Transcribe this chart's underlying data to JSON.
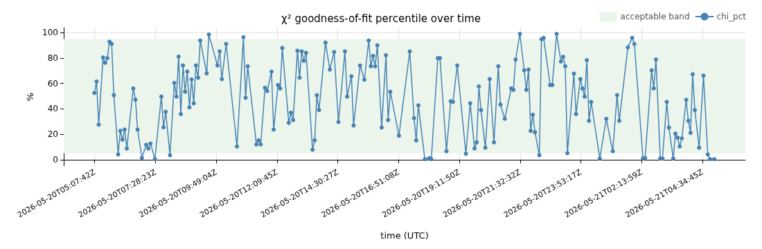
{
  "chart_data": {
    "type": "line",
    "title": "χ² goodness-of-fit percentile over time",
    "xlabel": "time (UTC)",
    "ylabel": "%",
    "xlim": [
      "2026-05-20T03:56",
      "2026-05-21T06:14"
    ],
    "xticks": [
      {
        "value": "2026-05-20T05:07:42",
        "label": "2026-05-20T05:07:42Z"
      },
      {
        "value": "2026-05-20T07:28:23",
        "label": "2026-05-20T07:28:23Z"
      },
      {
        "value": "2026-05-20T09:49:04",
        "label": "2026-05-20T09:49:04Z"
      },
      {
        "value": "2026-05-20T12:09:45",
        "label": "2026-05-20T12:09:45Z"
      },
      {
        "value": "2026-05-20T14:30:27",
        "label": "2026-05-20T14:30:27Z"
      },
      {
        "value": "2026-05-20T16:51:08",
        "label": "2026-05-20T16:51:08Z"
      },
      {
        "value": "2026-05-20T19:11:50",
        "label": "2026-05-20T19:11:50Z"
      },
      {
        "value": "2026-05-20T21:32:32",
        "label": "2026-05-20T21:32:32Z"
      },
      {
        "value": "2026-05-20T23:53:17",
        "label": "2026-05-20T23:53:17Z"
      },
      {
        "value": "2026-05-21T02:13:59",
        "label": "2026-05-21T02:13:59Z"
      },
      {
        "value": "2026-05-21T04:34:45",
        "label": "2026-05-21T04:34:45Z"
      }
    ],
    "ylim": [
      -5,
      104
    ],
    "yticks": [
      0,
      20,
      40,
      60,
      80,
      100
    ],
    "grid": true,
    "legend": "top right",
    "marker": "circle",
    "line_style": "solid",
    "bands": [
      {
        "axis": "y",
        "from": 5,
        "to": 95,
        "label": "acceptable band",
        "color": "#ebf5eb"
      }
    ],
    "series": [
      {
        "name": "chi_pct",
        "color": "#4682b4",
        "x": [
          "2026-05-20T05:07",
          "2026-05-20T05:12",
          "2026-05-20T05:17",
          "2026-05-20T05:27",
          "2026-05-20T05:32",
          "2026-05-20T05:37",
          "2026-05-20T05:42",
          "2026-05-20T05:47",
          "2026-05-20T05:52",
          "2026-05-20T06:02",
          "2026-05-20T06:07",
          "2026-05-20T06:12",
          "2026-05-20T06:17",
          "2026-05-20T06:22",
          "2026-05-20T06:37",
          "2026-05-20T06:42",
          "2026-05-20T06:47",
          "2026-05-20T06:57",
          "2026-05-20T07:07",
          "2026-05-20T07:12",
          "2026-05-20T07:17",
          "2026-05-20T07:27",
          "2026-05-20T07:42",
          "2026-05-20T07:47",
          "2026-05-20T07:52",
          "2026-05-20T08:02",
          "2026-05-20T08:12",
          "2026-05-20T08:17",
          "2026-05-20T08:22",
          "2026-05-20T08:27",
          "2026-05-20T08:32",
          "2026-05-20T08:37",
          "2026-05-20T08:42",
          "2026-05-20T08:47",
          "2026-05-20T08:52",
          "2026-05-20T08:57",
          "2026-05-20T09:02",
          "2026-05-20T09:07",
          "2026-05-20T09:12",
          "2026-05-20T09:27",
          "2026-05-20T09:32",
          "2026-05-20T09:52",
          "2026-05-20T09:57",
          "2026-05-20T10:02",
          "2026-05-20T10:12",
          "2026-05-20T10:37",
          "2026-05-20T10:52",
          "2026-05-20T10:57",
          "2026-05-20T11:02",
          "2026-05-20T11:22",
          "2026-05-20T11:27",
          "2026-05-20T11:32",
          "2026-05-20T11:42",
          "2026-05-20T11:47",
          "2026-05-20T11:57",
          "2026-05-20T12:02",
          "2026-05-20T12:12",
          "2026-05-20T12:17",
          "2026-05-20T12:22",
          "2026-05-20T12:37",
          "2026-05-20T12:42",
          "2026-05-20T12:47",
          "2026-05-20T12:57",
          "2026-05-20T13:02",
          "2026-05-20T13:07",
          "2026-05-20T13:12",
          "2026-05-20T13:17",
          "2026-05-20T13:32",
          "2026-05-20T13:37",
          "2026-05-20T13:42",
          "2026-05-20T13:47",
          "2026-05-20T14:02",
          "2026-05-20T14:12",
          "2026-05-20T14:22",
          "2026-05-20T14:32",
          "2026-05-20T14:47",
          "2026-05-20T14:52",
          "2026-05-20T15:02",
          "2026-05-20T15:07",
          "2026-05-20T15:22",
          "2026-05-20T15:32",
          "2026-05-20T15:42",
          "2026-05-20T15:47",
          "2026-05-20T15:52",
          "2026-05-20T15:57",
          "2026-05-20T16:02",
          "2026-05-20T16:12",
          "2026-05-20T16:22",
          "2026-05-20T16:27",
          "2026-05-20T16:32",
          "2026-05-20T16:52",
          "2026-05-20T17:17",
          "2026-05-20T17:27",
          "2026-05-20T17:32",
          "2026-05-20T17:37",
          "2026-05-20T17:52",
          "2026-05-20T18:02",
          "2026-05-20T18:07",
          "2026-05-20T18:22",
          "2026-05-20T18:27",
          "2026-05-20T18:42",
          "2026-05-20T18:52",
          "2026-05-20T18:57",
          "2026-05-20T19:07",
          "2026-05-20T19:27",
          "2026-05-20T19:37",
          "2026-05-20T19:47",
          "2026-05-20T19:52",
          "2026-05-20T19:57",
          "2026-05-20T20:02",
          "2026-05-20T20:12",
          "2026-05-20T20:22",
          "2026-05-20T20:32",
          "2026-05-20T20:42",
          "2026-05-20T20:47",
          "2026-05-20T20:57",
          "2026-05-20T21:12",
          "2026-05-20T21:17",
          "2026-05-20T21:22",
          "2026-05-20T21:32",
          "2026-05-20T21:42",
          "2026-05-20T21:47",
          "2026-05-20T21:52",
          "2026-05-20T21:57",
          "2026-05-20T22:02",
          "2026-05-20T22:07",
          "2026-05-20T22:17",
          "2026-05-20T22:22",
          "2026-05-20T22:27",
          "2026-05-20T22:42",
          "2026-05-20T22:47",
          "2026-05-20T22:57",
          "2026-05-20T23:07",
          "2026-05-20T23:12",
          "2026-05-20T23:17",
          "2026-05-20T23:22",
          "2026-05-20T23:37",
          "2026-05-20T23:42",
          "2026-05-20T23:52",
          "2026-05-20T23:57",
          "2026-05-21T00:02",
          "2026-05-21T00:07",
          "2026-05-21T00:12",
          "2026-05-21T00:17",
          "2026-05-21T00:37",
          "2026-05-21T00:52",
          "2026-05-21T01:07",
          "2026-05-21T01:17",
          "2026-05-21T01:22",
          "2026-05-21T01:42",
          "2026-05-21T01:52",
          "2026-05-21T01:57",
          "2026-05-21T02:17",
          "2026-05-21T02:22",
          "2026-05-21T02:37",
          "2026-05-21T02:42",
          "2026-05-21T02:47",
          "2026-05-21T02:57",
          "2026-05-21T03:02",
          "2026-05-21T03:12",
          "2026-05-21T03:17",
          "2026-05-21T03:27",
          "2026-05-21T03:32",
          "2026-05-21T03:37",
          "2026-05-21T03:42",
          "2026-05-21T03:47",
          "2026-05-21T03:57",
          "2026-05-21T04:02",
          "2026-05-21T04:07",
          "2026-05-21T04:12",
          "2026-05-21T04:17",
          "2026-05-21T04:27",
          "2026-05-21T04:37",
          "2026-05-21T04:47",
          "2026-05-21T04:52",
          "2026-05-21T05:02"
        ],
        "values": [
          52.6,
          61.6,
          27.6,
          80.5,
          76.3,
          80,
          92.9,
          91.2,
          50.8,
          4.1,
          22.8,
          15.8,
          23.7,
          8.8,
          56.1,
          47.3,
          23.7,
          1.4,
          11.7,
          8.8,
          12.7,
          0.4,
          49.7,
          25.5,
          37.7,
          3.5,
          60.5,
          49.7,
          81.2,
          35.9,
          74.2,
          53.5,
          69.4,
          41.2,
          63.2,
          44.4,
          74.2,
          64.6,
          93.8,
          68,
          98.6,
          74.2,
          85.3,
          63.5,
          91.2,
          10.4,
          96.5,
          48.7,
          73.6,
          12,
          15.2,
          12,
          56.6,
          54,
          69.4,
          23.7,
          58.8,
          56.1,
          88,
          29,
          37,
          31.2,
          85.8,
          64.6,
          85.3,
          77.9,
          84.2,
          7.8,
          15.2,
          50.8,
          39.1,
          92.2,
          71,
          84.8,
          29.6,
          85.3,
          49.7,
          65.7,
          26.9,
          74.2,
          63,
          93.8,
          73.6,
          81.8,
          73.6,
          90.1,
          25.3,
          82.3,
          31.2,
          53.5,
          18.9,
          85.3,
          32.7,
          15.2,
          42.8,
          0.4,
          1.2,
          0.4,
          80,
          80,
          6.7,
          46,
          45.5,
          74.2,
          4.6,
          44.4,
          8.8,
          13.6,
          57.7,
          39.1,
          9.4,
          63.5,
          13.6,
          73.6,
          43.4,
          32.2,
          56.1,
          55,
          78.9,
          99.1,
          70.4,
          55,
          71,
          22.7,
          35.4,
          21.6,
          3.5,
          94.9,
          95.9,
          58.8,
          58.8,
          99.1,
          77.3,
          81.1,
          73.6,
          5.1,
          67.8,
          35.9,
          63.5,
          56.1,
          49.7,
          78.4,
          30.6,
          45.5,
          0.9,
          32.2,
          6.7,
          50.8,
          30.6,
          88.5,
          96,
          91.2,
          0.9,
          1.4,
          70.4,
          56.1,
          78.9,
          0.9,
          0.9,
          45.5,
          25.3,
          0.9,
          20.5,
          17.3,
          10.4,
          16.8,
          47.1,
          30.6,
          21.1,
          67.3,
          39.1,
          9.4,
          66.2,
          4.1,
          0.4,
          0.4
        ]
      }
    ]
  }
}
